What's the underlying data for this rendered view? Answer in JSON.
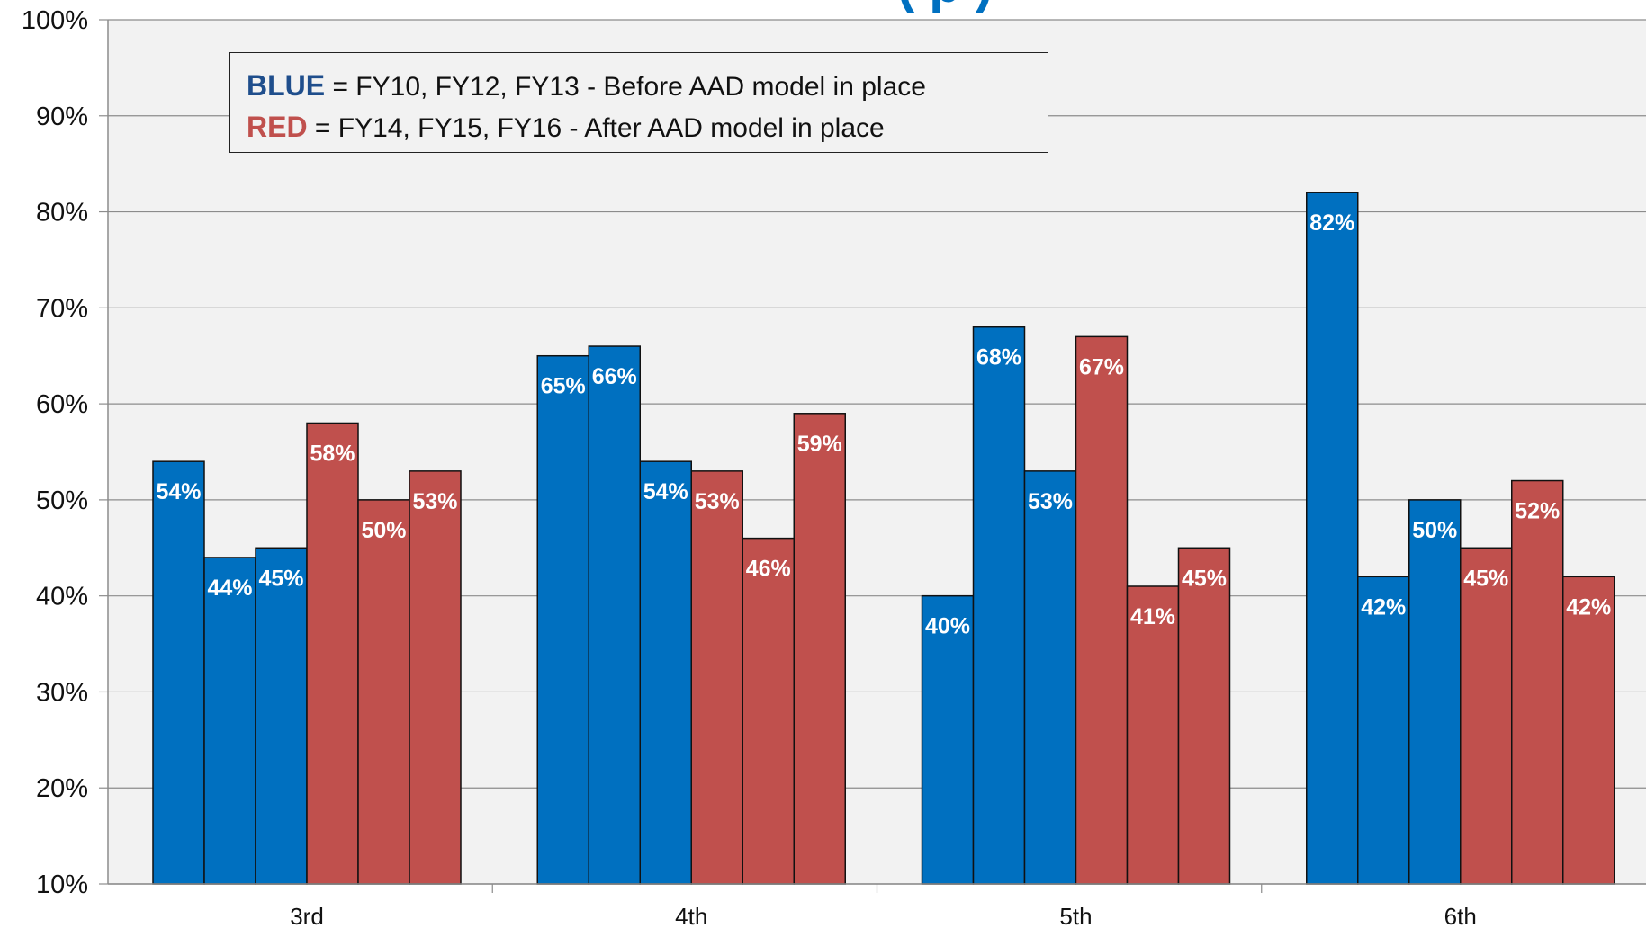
{
  "colors": {
    "blue": "#0070c0",
    "red": "#c0504d",
    "legend_blue_text": "#1f4e8c",
    "legend_red_text": "#c0504d",
    "title_color": "#0070c0"
  },
  "chart_data": {
    "type": "bar",
    "title": "(        p                                     )",
    "categories": [
      "3rd",
      "4th",
      "5th",
      "6th"
    ],
    "series": [
      {
        "values": [
          54,
          65,
          40,
          82
        ],
        "color": "blue"
      },
      {
        "values": [
          44,
          66,
          68,
          42
        ],
        "color": "blue"
      },
      {
        "values": [
          45,
          54,
          53,
          50
        ],
        "color": "blue"
      },
      {
        "values": [
          58,
          53,
          67,
          45
        ],
        "color": "red"
      },
      {
        "values": [
          50,
          46,
          41,
          52
        ],
        "color": "red"
      },
      {
        "values": [
          53,
          59,
          45,
          42
        ],
        "color": "red"
      }
    ],
    "data_labels": [
      [
        "54%",
        "44%",
        "45%",
        "58%",
        "50%",
        "53%"
      ],
      [
        "65%",
        "66%",
        "54%",
        "53%",
        "46%",
        "59%"
      ],
      [
        "40%",
        "68%",
        "53%",
        "67%",
        "41%",
        "45%"
      ],
      [
        "82%",
        "42%",
        "50%",
        "45%",
        "52%",
        "42%"
      ]
    ],
    "ylim": [
      10,
      100
    ],
    "yticks": [
      10,
      20,
      30,
      40,
      50,
      60,
      70,
      80,
      90,
      100
    ],
    "ytick_labels": [
      "10%",
      "20%",
      "30%",
      "40%",
      "50%",
      "60%",
      "70%",
      "80%",
      "90%",
      "100%"
    ],
    "grid": true,
    "legend": {
      "placement": "top-left",
      "entries": [
        {
          "key": "BLUE",
          "text": " = FY10, FY12, FY13 - Before AAD model  in place"
        },
        {
          "key": "RED",
          "text": " = FY14, FY15, FY16 - After AAD model  in place"
        }
      ]
    }
  }
}
